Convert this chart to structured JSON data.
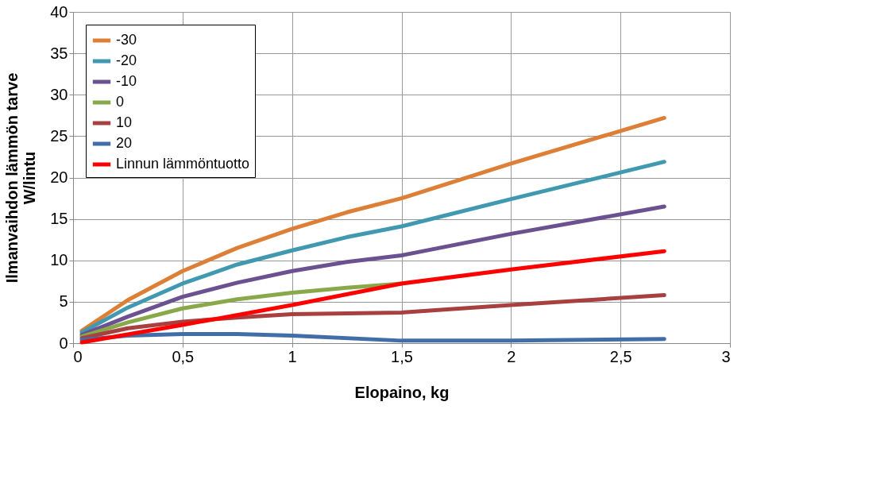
{
  "chart_data": {
    "type": "line",
    "xlabel": "Elopaino, kg",
    "ylabel": "Ilmanvaihdon lämmön tarve\nW/lintu",
    "xlim": [
      0,
      3
    ],
    "xticks": [
      0,
      {
        "value": 0.5,
        "label": "0,5"
      },
      1,
      {
        "value": 1.5,
        "label": "1,5"
      },
      2,
      {
        "value": 2.5,
        "label": "2,5"
      },
      3
    ],
    "ylim": [
      0,
      40
    ],
    "yticks": [
      0,
      5,
      10,
      15,
      20,
      25,
      30,
      35,
      40
    ],
    "grid": true,
    "legend": "top left",
    "marker": "none",
    "line_style": "solid",
    "series": [
      {
        "name": "-30",
        "color": "#dd7f36",
        "x": [
          0.04,
          0.25,
          0.5,
          0.75,
          1.0,
          1.25,
          1.5,
          2.0,
          2.7
        ],
        "values": [
          1.5,
          5.2,
          8.7,
          11.5,
          13.8,
          15.8,
          17.5,
          21.7,
          27.2
        ]
      },
      {
        "name": "-20",
        "color": "#4099b0",
        "x": [
          0.04,
          0.25,
          0.5,
          0.75,
          1.0,
          1.25,
          1.5,
          2.0,
          2.7
        ],
        "values": [
          1.3,
          4.3,
          7.2,
          9.5,
          11.2,
          12.8,
          14.1,
          17.4,
          21.9
        ]
      },
      {
        "name": "-10",
        "color": "#6c5190",
        "x": [
          0.04,
          0.25,
          0.5,
          0.75,
          1.0,
          1.25,
          1.5,
          2.0,
          2.7
        ],
        "values": [
          1.0,
          3.2,
          5.6,
          7.3,
          8.7,
          9.8,
          10.6,
          13.2,
          16.5
        ]
      },
      {
        "name": "0",
        "color": "#88a84a",
        "x": [
          0.04,
          0.25,
          0.5,
          0.75,
          1.0,
          1.25,
          1.5
        ],
        "values": [
          0.8,
          2.5,
          4.2,
          5.3,
          6.1,
          6.7,
          7.2
        ]
      },
      {
        "name": "10",
        "color": "#a84040",
        "x": [
          0.04,
          0.25,
          0.5,
          0.75,
          1.0,
          1.5,
          2.0,
          2.7
        ],
        "values": [
          0.6,
          1.8,
          2.6,
          3.1,
          3.5,
          3.7,
          4.6,
          5.8
        ]
      },
      {
        "name": "20",
        "color": "#426ea8",
        "x": [
          0.04,
          0.25,
          0.5,
          0.75,
          1.0,
          1.5,
          2.0,
          2.7
        ],
        "values": [
          0.4,
          0.9,
          1.1,
          1.1,
          0.9,
          0.3,
          0.3,
          0.5
        ]
      },
      {
        "name": "Linnun lämmöntuotto",
        "color": "#ff0000",
        "x": [
          0.04,
          0.5,
          1.0,
          1.5,
          2.0,
          2.7
        ],
        "values": [
          0.1,
          2.2,
          4.6,
          7.2,
          8.9,
          11.1
        ]
      }
    ]
  }
}
